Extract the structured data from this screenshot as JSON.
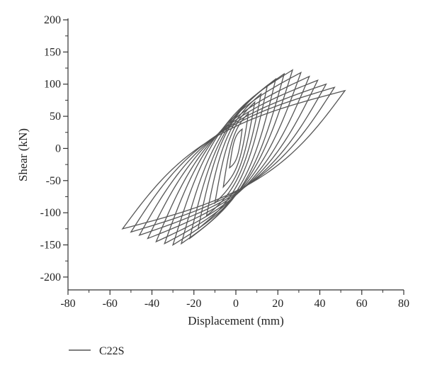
{
  "chart_data": {
    "type": "line",
    "title": "",
    "xlabel": "Displacement (mm)",
    "ylabel": "Shear (kN)",
    "xlim": [
      -80,
      80
    ],
    "ylim": [
      -220,
      200
    ],
    "xticks": [
      -80,
      -60,
      -40,
      -20,
      0,
      20,
      40,
      60,
      80
    ],
    "yticks": [
      200,
      150,
      100,
      50,
      0,
      -50,
      -100,
      -150,
      -200
    ],
    "grid": false,
    "legend_position": "bottom-left",
    "line_color": "#555555",
    "series": [
      {
        "name": "C22S",
        "description_cycles": [
          {
            "x_max": 3,
            "y_max": 30,
            "x_min": -3,
            "y_min": -30
          },
          {
            "x_max": 6,
            "y_max": 55,
            "x_min": -6,
            "y_min": -60
          },
          {
            "x_max": 9,
            "y_max": 72,
            "x_min": -10,
            "y_min": -85
          },
          {
            "x_max": 12,
            "y_max": 85,
            "x_min": -14,
            "y_min": -105
          },
          {
            "x_max": 15,
            "y_max": 98,
            "x_min": -18,
            "y_min": -125
          },
          {
            "x_max": 19,
            "y_max": 108,
            "x_min": -22,
            "y_min": -140
          },
          {
            "x_max": 23,
            "y_max": 116,
            "x_min": -26,
            "y_min": -148
          },
          {
            "x_max": 27,
            "y_max": 122,
            "x_min": -30,
            "y_min": -150
          },
          {
            "x_max": 31,
            "y_max": 118,
            "x_min": -34,
            "y_min": -148
          },
          {
            "x_max": 35,
            "y_max": 112,
            "x_min": -38,
            "y_min": -145
          },
          {
            "x_max": 39,
            "y_max": 106,
            "x_min": -42,
            "y_min": -140
          },
          {
            "x_max": 43,
            "y_max": 100,
            "x_min": -46,
            "y_min": -135
          },
          {
            "x_max": 47,
            "y_max": 95,
            "x_min": -50,
            "y_min": -130
          },
          {
            "x_max": 52,
            "y_max": 90,
            "x_min": -54,
            "y_min": -125
          }
        ]
      }
    ]
  }
}
